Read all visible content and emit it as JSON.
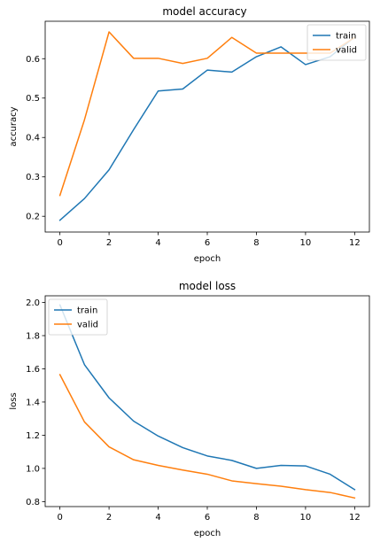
{
  "chart_data": [
    {
      "type": "line",
      "title": "model accuracy",
      "xlabel": "epoch",
      "ylabel": "accuracy",
      "x": [
        0,
        1,
        2,
        3,
        4,
        5,
        6,
        7,
        8,
        9,
        10,
        11,
        12
      ],
      "xlim": [
        -0.6,
        12.6
      ],
      "ylim": [
        0.16,
        0.695
      ],
      "xticks": [
        0,
        2,
        4,
        6,
        8,
        10,
        12
      ],
      "xtick_labels": [
        "0",
        "2",
        "4",
        "6",
        "8",
        "10",
        "12"
      ],
      "yticks": [
        0.2,
        0.3,
        0.4,
        0.5,
        0.6
      ],
      "ytick_labels": [
        "0.2",
        "0.3",
        "0.4",
        "0.5",
        "0.6"
      ],
      "legend_position": "top-right",
      "grid": false,
      "series": [
        {
          "name": "train",
          "color": "#1f77b4",
          "values": [
            0.19,
            0.245,
            0.318,
            0.42,
            0.518,
            0.523,
            0.571,
            0.566,
            0.605,
            0.63,
            0.585,
            0.605,
            0.655
          ]
        },
        {
          "name": "valid",
          "color": "#ff7f0e",
          "values": [
            0.253,
            0.445,
            0.668,
            0.601,
            0.601,
            0.588,
            0.601,
            0.654,
            0.614,
            0.614,
            0.614,
            0.614,
            0.654
          ]
        }
      ]
    },
    {
      "type": "line",
      "title": "model loss",
      "xlabel": "epoch",
      "ylabel": "loss",
      "x": [
        0,
        1,
        2,
        3,
        4,
        5,
        6,
        7,
        8,
        9,
        10,
        11,
        12
      ],
      "xlim": [
        -0.6,
        12.6
      ],
      "ylim": [
        0.77,
        2.04
      ],
      "xticks": [
        0,
        2,
        4,
        6,
        8,
        10,
        12
      ],
      "xtick_labels": [
        "0",
        "2",
        "4",
        "6",
        "8",
        "10",
        "12"
      ],
      "yticks": [
        0.8,
        1.0,
        1.2,
        1.4,
        1.6,
        1.8,
        2.0
      ],
      "ytick_labels": [
        "0.8",
        "1.0",
        "1.2",
        "1.4",
        "1.6",
        "1.8",
        "2.0"
      ],
      "legend_position": "top-left",
      "grid": false,
      "series": [
        {
          "name": "train",
          "color": "#1f77b4",
          "values": [
            1.985,
            1.625,
            1.425,
            1.285,
            1.195,
            1.125,
            1.075,
            1.048,
            1.0,
            1.018,
            1.015,
            0.965,
            0.872
          ]
        },
        {
          "name": "valid",
          "color": "#ff7f0e",
          "values": [
            1.565,
            1.28,
            1.13,
            1.052,
            1.018,
            0.99,
            0.965,
            0.925,
            0.908,
            0.893,
            0.872,
            0.855,
            0.822
          ]
        }
      ]
    }
  ]
}
